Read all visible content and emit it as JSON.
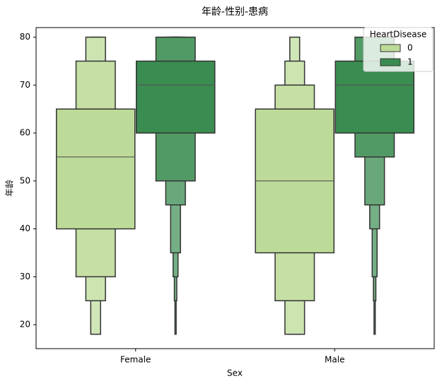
{
  "chart_data": {
    "type": "boxen",
    "title": "年龄-性别-患病",
    "x_label": "Sex",
    "y_label": "年龄",
    "categories": [
      "Female",
      "Male"
    ],
    "ylim": [
      15,
      82
    ],
    "yticks": [
      20,
      30,
      40,
      50,
      60,
      70,
      80
    ],
    "legend_title": "HeartDisease",
    "legend_position": "upper right",
    "series": [
      {
        "name": "0",
        "color": "#bddb98",
        "data": [
          {
            "median": 55,
            "levels": [
              [
                40,
                65
              ],
              [
                30,
                75
              ],
              [
                25,
                80
              ],
              [
                18,
                80
              ]
            ]
          },
          {
            "median": 50,
            "levels": [
              [
                35,
                65
              ],
              [
                25,
                70
              ],
              [
                18,
                75
              ],
              [
                18,
                80
              ]
            ]
          }
        ]
      },
      {
        "name": "1",
        "color": "#3a8c50",
        "data": [
          {
            "median": 70,
            "levels": [
              [
                60,
                75
              ],
              [
                50,
                80
              ],
              [
                45,
                80
              ],
              [
                35,
                80
              ],
              [
                30,
                80
              ],
              [
                25,
                80
              ],
              [
                18,
                80
              ]
            ]
          },
          {
            "median": 70,
            "levels": [
              [
                60,
                75
              ],
              [
                55,
                80
              ],
              [
                45,
                80
              ],
              [
                40,
                80
              ],
              [
                30,
                80
              ],
              [
                25,
                80
              ],
              [
                18,
                80
              ]
            ]
          }
        ]
      }
    ]
  }
}
